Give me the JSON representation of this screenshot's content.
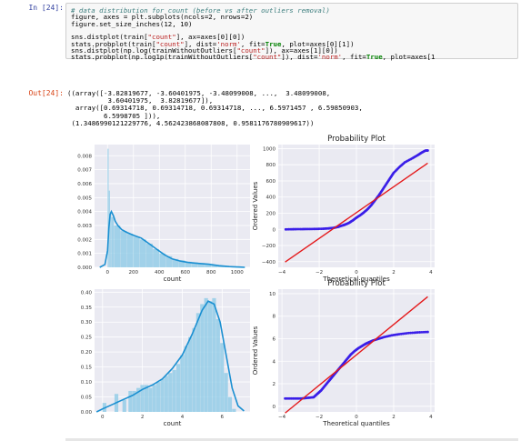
{
  "cell": {
    "in_prompt": "In [24]:",
    "out_prompt": "Out[24]:",
    "code_lines": [
      {
        "parts": [
          {
            "t": "# data distribution for count (before vs after outliers removal)",
            "c": "cm"
          }
        ]
      },
      {
        "parts": [
          {
            "t": "figure, axes = plt.subplots(ncols=2, nrows=2)",
            "c": ""
          }
        ]
      },
      {
        "parts": [
          {
            "t": "figure.set_size_inches(12, 10)",
            "c": ""
          }
        ]
      },
      {
        "parts": [
          {
            "t": "",
            "c": ""
          }
        ]
      },
      {
        "parts": [
          {
            "t": "sns.distplot(train[",
            "c": ""
          },
          {
            "t": "\"count\"",
            "c": "str"
          },
          {
            "t": "], ax=axes[0][0])",
            "c": ""
          }
        ]
      },
      {
        "parts": [
          {
            "t": "stats.probplot(train[",
            "c": ""
          },
          {
            "t": "\"count\"",
            "c": "str"
          },
          {
            "t": "], dist=",
            "c": ""
          },
          {
            "t": "'norm'",
            "c": "str"
          },
          {
            "t": ", fit=",
            "c": ""
          },
          {
            "t": "True",
            "c": "kw"
          },
          {
            "t": ", plot=axes[0][1])",
            "c": ""
          }
        ]
      },
      {
        "parts": [
          {
            "t": "sns.distplot(np.log(trainWithoutOutliers[",
            "c": ""
          },
          {
            "t": "\"count\"",
            "c": "str"
          },
          {
            "t": "]), ax=axes[1][0])",
            "c": ""
          }
        ]
      },
      {
        "parts": [
          {
            "t": "stats.probplot(np.log1p(trainWithoutOutliers[",
            "c": ""
          },
          {
            "t": "\"count\"",
            "c": "str"
          },
          {
            "t": "]), dist=",
            "c": ""
          },
          {
            "t": "'norm'",
            "c": "str"
          },
          {
            "t": ", fit=",
            "c": ""
          },
          {
            "t": "True",
            "c": "kw"
          },
          {
            "t": ", plot=axes[1",
            "c": ""
          }
        ]
      }
    ],
    "output_lines": [
      "((array([-3.82819677, -3.60401975, -3.48099008, ...,  3.48099008,",
      "          3.60401975,  3.82819677]),",
      "  array([0.69314718, 0.69314718, 0.69314718, ..., 6.5971457 , 6.59850903,",
      "         6.5998705 ])),",
      " (1.3486990121229776, 4.562423868087808, 0.9581176780909617))"
    ]
  },
  "colors": {
    "hist_fill": "#8ecae6",
    "kde_line": "#1a8fd1",
    "qq_points": "#3a1ee8",
    "fit_line": "#e41a1c",
    "plot_bg": "#eaeaf2"
  },
  "chart_data": [
    {
      "type": "bar",
      "title": "",
      "xlabel": "count",
      "ylabel": "",
      "xlim": [
        -100,
        1100
      ],
      "ylim": [
        0,
        0.0088
      ],
      "xticks": [
        {
          "v": 0,
          "label": "0"
        },
        {
          "v": 200,
          "label": "200"
        },
        {
          "v": 400,
          "label": "400"
        },
        {
          "v": 600,
          "label": "600"
        },
        {
          "v": 800,
          "label": "800"
        },
        {
          "v": 1000,
          "label": "1000"
        }
      ],
      "yticks": [
        {
          "v": 0,
          "label": "0.000"
        },
        {
          "v": 0.001,
          "label": "0.001"
        },
        {
          "v": 0.002,
          "label": "0.002"
        },
        {
          "v": 0.003,
          "label": "0.003"
        },
        {
          "v": 0.004,
          "label": "0.004"
        },
        {
          "v": 0.005,
          "label": "0.005"
        },
        {
          "v": 0.006,
          "label": "0.006"
        },
        {
          "v": 0.007,
          "label": "0.007"
        },
        {
          "v": 0.008,
          "label": "0.008"
        }
      ],
      "hist": [
        {
          "x0": 0,
          "x1": 10,
          "y": 0.0085
        },
        {
          "x0": 10,
          "x1": 20,
          "y": 0.0055
        },
        {
          "x0": 20,
          "x1": 30,
          "y": 0.004
        },
        {
          "x0": 30,
          "x1": 50,
          "y": 0.0036
        },
        {
          "x0": 50,
          "x1": 100,
          "y": 0.003
        },
        {
          "x0": 100,
          "x1": 150,
          "y": 0.0026
        },
        {
          "x0": 150,
          "x1": 200,
          "y": 0.0024
        },
        {
          "x0": 200,
          "x1": 250,
          "y": 0.0022
        },
        {
          "x0": 250,
          "x1": 300,
          "y": 0.002
        },
        {
          "x0": 300,
          "x1": 350,
          "y": 0.0017
        },
        {
          "x0": 350,
          "x1": 400,
          "y": 0.0013
        },
        {
          "x0": 400,
          "x1": 450,
          "y": 0.001
        },
        {
          "x0": 450,
          "x1": 500,
          "y": 0.0008
        },
        {
          "x0": 500,
          "x1": 550,
          "y": 0.0006
        },
        {
          "x0": 550,
          "x1": 600,
          "y": 0.0005
        },
        {
          "x0": 600,
          "x1": 650,
          "y": 0.0004
        },
        {
          "x0": 650,
          "x1": 700,
          "y": 0.00035
        },
        {
          "x0": 700,
          "x1": 750,
          "y": 0.0003
        },
        {
          "x0": 750,
          "x1": 800,
          "y": 0.00025
        },
        {
          "x0": 800,
          "x1": 850,
          "y": 0.00015
        },
        {
          "x0": 850,
          "x1": 900,
          "y": 0.0001
        },
        {
          "x0": 900,
          "x1": 950,
          "y": 5e-05
        },
        {
          "x0": 950,
          "x1": 1000,
          "y": 3e-05
        }
      ],
      "kde": [
        [
          -60,
          0
        ],
        [
          -20,
          0.0002
        ],
        [
          0,
          0.0012
        ],
        [
          10,
          0.0028
        ],
        [
          20,
          0.0038
        ],
        [
          30,
          0.004
        ],
        [
          45,
          0.0037
        ],
        [
          60,
          0.0033
        ],
        [
          80,
          0.003
        ],
        [
          110,
          0.0027
        ],
        [
          150,
          0.0025
        ],
        [
          200,
          0.0023
        ],
        [
          260,
          0.0021
        ],
        [
          320,
          0.0017
        ],
        [
          380,
          0.0013
        ],
        [
          440,
          0.0009
        ],
        [
          500,
          0.0006
        ],
        [
          560,
          0.00045
        ],
        [
          620,
          0.00035
        ],
        [
          700,
          0.00028
        ],
        [
          780,
          0.00022
        ],
        [
          860,
          0.00012
        ],
        [
          940,
          5e-05
        ],
        [
          1020,
          2e-05
        ],
        [
          1060,
          0
        ]
      ]
    },
    {
      "type": "scatter",
      "title": "Probability Plot",
      "xlabel": "Theoretical quantiles",
      "ylabel": "Ordered Values",
      "xlim": [
        -4.2,
        4.2
      ],
      "ylim": [
        -470,
        1050
      ],
      "xticks": [
        {
          "v": -4,
          "label": "−4"
        },
        {
          "v": -2,
          "label": "−2"
        },
        {
          "v": 0,
          "label": "0"
        },
        {
          "v": 2,
          "label": "2"
        },
        {
          "v": 4,
          "label": "4"
        }
      ],
      "yticks": [
        {
          "v": -400,
          "label": "−400"
        },
        {
          "v": -200,
          "label": "−200"
        },
        {
          "v": 0,
          "label": "0"
        },
        {
          "v": 200,
          "label": "200"
        },
        {
          "v": 400,
          "label": "400"
        },
        {
          "v": 600,
          "label": "600"
        },
        {
          "v": 800,
          "label": "800"
        },
        {
          "v": 1000,
          "label": "1000"
        }
      ],
      "fit_line": [
        [
          -3.83,
          -405
        ],
        [
          3.83,
          820
        ]
      ],
      "points": [
        [
          -3.8,
          0
        ],
        [
          -3.4,
          2
        ],
        [
          -3.0,
          3
        ],
        [
          -2.6,
          4
        ],
        [
          -2.2,
          5
        ],
        [
          -1.8,
          8
        ],
        [
          -1.5,
          12
        ],
        [
          -1.2,
          20
        ],
        [
          -1.0,
          30
        ],
        [
          -0.8,
          45
        ],
        [
          -0.6,
          60
        ],
        [
          -0.4,
          80
        ],
        [
          -0.2,
          110
        ],
        [
          0.0,
          145
        ],
        [
          0.2,
          175
        ],
        [
          0.4,
          210
        ],
        [
          0.6,
          250
        ],
        [
          0.8,
          300
        ],
        [
          1.0,
          360
        ],
        [
          1.2,
          420
        ],
        [
          1.4,
          490
        ],
        [
          1.6,
          560
        ],
        [
          1.8,
          630
        ],
        [
          2.0,
          700
        ],
        [
          2.3,
          770
        ],
        [
          2.6,
          830
        ],
        [
          3.0,
          880
        ],
        [
          3.3,
          920
        ],
        [
          3.5,
          950
        ],
        [
          3.7,
          975
        ],
        [
          3.83,
          977
        ]
      ]
    },
    {
      "type": "bar",
      "title": "",
      "xlabel": "count",
      "ylabel": "",
      "xlim": [
        -0.4,
        7.4
      ],
      "ylim": [
        0,
        0.41
      ],
      "xticks": [
        {
          "v": 0,
          "label": "0"
        },
        {
          "v": 2,
          "label": "2"
        },
        {
          "v": 4,
          "label": "4"
        },
        {
          "v": 6,
          "label": "6"
        }
      ],
      "yticks": [
        {
          "v": 0,
          "label": "0.00"
        },
        {
          "v": 0.05,
          "label": "0.05"
        },
        {
          "v": 0.1,
          "label": "0.10"
        },
        {
          "v": 0.15,
          "label": "0.15"
        },
        {
          "v": 0.2,
          "label": "0.20"
        },
        {
          "v": 0.25,
          "label": "0.25"
        },
        {
          "v": 0.3,
          "label": "0.30"
        },
        {
          "v": 0.35,
          "label": "0.35"
        },
        {
          "v": 0.4,
          "label": "0.40"
        }
      ],
      "hist": [
        {
          "x0": 0.0,
          "x1": 0.2,
          "y": 0.03
        },
        {
          "x0": 0.6,
          "x1": 0.8,
          "y": 0.06
        },
        {
          "x0": 1.0,
          "x1": 1.2,
          "y": 0.04
        },
        {
          "x0": 1.3,
          "x1": 1.5,
          "y": 0.07
        },
        {
          "x0": 1.5,
          "x1": 1.7,
          "y": 0.07
        },
        {
          "x0": 1.7,
          "x1": 1.9,
          "y": 0.08
        },
        {
          "x0": 1.9,
          "x1": 2.1,
          "y": 0.09
        },
        {
          "x0": 2.1,
          "x1": 2.3,
          "y": 0.09
        },
        {
          "x0": 2.3,
          "x1": 2.5,
          "y": 0.08
        },
        {
          "x0": 2.5,
          "x1": 2.7,
          "y": 0.09
        },
        {
          "x0": 2.7,
          "x1": 2.9,
          "y": 0.1
        },
        {
          "x0": 2.9,
          "x1": 3.1,
          "y": 0.11
        },
        {
          "x0": 3.1,
          "x1": 3.3,
          "y": 0.12
        },
        {
          "x0": 3.3,
          "x1": 3.5,
          "y": 0.13
        },
        {
          "x0": 3.5,
          "x1": 3.7,
          "y": 0.14
        },
        {
          "x0": 3.7,
          "x1": 3.9,
          "y": 0.16
        },
        {
          "x0": 3.9,
          "x1": 4.1,
          "y": 0.19
        },
        {
          "x0": 4.1,
          "x1": 4.3,
          "y": 0.22
        },
        {
          "x0": 4.3,
          "x1": 4.5,
          "y": 0.25
        },
        {
          "x0": 4.5,
          "x1": 4.7,
          "y": 0.28
        },
        {
          "x0": 4.7,
          "x1": 4.9,
          "y": 0.33
        },
        {
          "x0": 4.9,
          "x1": 5.1,
          "y": 0.36
        },
        {
          "x0": 5.1,
          "x1": 5.3,
          "y": 0.38
        },
        {
          "x0": 5.3,
          "x1": 5.5,
          "y": 0.37
        },
        {
          "x0": 5.5,
          "x1": 5.7,
          "y": 0.38
        },
        {
          "x0": 5.7,
          "x1": 5.9,
          "y": 0.31
        },
        {
          "x0": 5.9,
          "x1": 6.1,
          "y": 0.23
        },
        {
          "x0": 6.1,
          "x1": 6.3,
          "y": 0.13
        },
        {
          "x0": 6.3,
          "x1": 6.5,
          "y": 0.05
        },
        {
          "x0": 6.5,
          "x1": 6.7,
          "y": 0.01
        }
      ],
      "kde": [
        [
          -0.3,
          0.0
        ],
        [
          0.0,
          0.01
        ],
        [
          0.5,
          0.025
        ],
        [
          1.0,
          0.04
        ],
        [
          1.5,
          0.055
        ],
        [
          2.0,
          0.075
        ],
        [
          2.5,
          0.09
        ],
        [
          3.0,
          0.11
        ],
        [
          3.5,
          0.145
        ],
        [
          4.0,
          0.19
        ],
        [
          4.5,
          0.26
        ],
        [
          5.0,
          0.34
        ],
        [
          5.3,
          0.37
        ],
        [
          5.6,
          0.36
        ],
        [
          5.9,
          0.3
        ],
        [
          6.2,
          0.19
        ],
        [
          6.5,
          0.08
        ],
        [
          6.8,
          0.02
        ],
        [
          7.1,
          0.003
        ]
      ]
    },
    {
      "type": "scatter",
      "title": "Probability Plot",
      "xlabel": "Theoretical quantiles",
      "ylabel": "Ordered Values",
      "xlim": [
        -4.2,
        4.2
      ],
      "ylim": [
        -0.5,
        10.4
      ],
      "xticks": [
        {
          "v": -4,
          "label": "−4"
        },
        {
          "v": -2,
          "label": "−2"
        },
        {
          "v": 0,
          "label": "0"
        },
        {
          "v": 2,
          "label": "2"
        },
        {
          "v": 4,
          "label": "4"
        }
      ],
      "yticks": [
        {
          "v": 0,
          "label": "0"
        },
        {
          "v": 2,
          "label": "2"
        },
        {
          "v": 4,
          "label": "4"
        },
        {
          "v": 6,
          "label": "6"
        },
        {
          "v": 8,
          "label": "8"
        },
        {
          "v": 10,
          "label": "10"
        }
      ],
      "fit_line": [
        [
          -3.83,
          -0.6
        ],
        [
          3.83,
          9.73
        ]
      ],
      "points": [
        [
          -3.83,
          0.69
        ],
        [
          -3.4,
          0.69
        ],
        [
          -3.0,
          0.69
        ],
        [
          -2.6,
          0.75
        ],
        [
          -2.3,
          0.8
        ],
        [
          -2.1,
          1.1
        ],
        [
          -1.9,
          1.4
        ],
        [
          -1.7,
          1.8
        ],
        [
          -1.5,
          2.2
        ],
        [
          -1.3,
          2.6
        ],
        [
          -1.1,
          3.0
        ],
        [
          -0.9,
          3.4
        ],
        [
          -0.7,
          3.8
        ],
        [
          -0.5,
          4.2
        ],
        [
          -0.3,
          4.6
        ],
        [
          -0.1,
          4.9
        ],
        [
          0.1,
          5.15
        ],
        [
          0.3,
          5.35
        ],
        [
          0.5,
          5.55
        ],
        [
          0.7,
          5.7
        ],
        [
          0.9,
          5.85
        ],
        [
          1.2,
          6.0
        ],
        [
          1.5,
          6.15
        ],
        [
          1.9,
          6.3
        ],
        [
          2.3,
          6.4
        ],
        [
          2.8,
          6.5
        ],
        [
          3.3,
          6.56
        ],
        [
          3.83,
          6.6
        ]
      ]
    }
  ]
}
